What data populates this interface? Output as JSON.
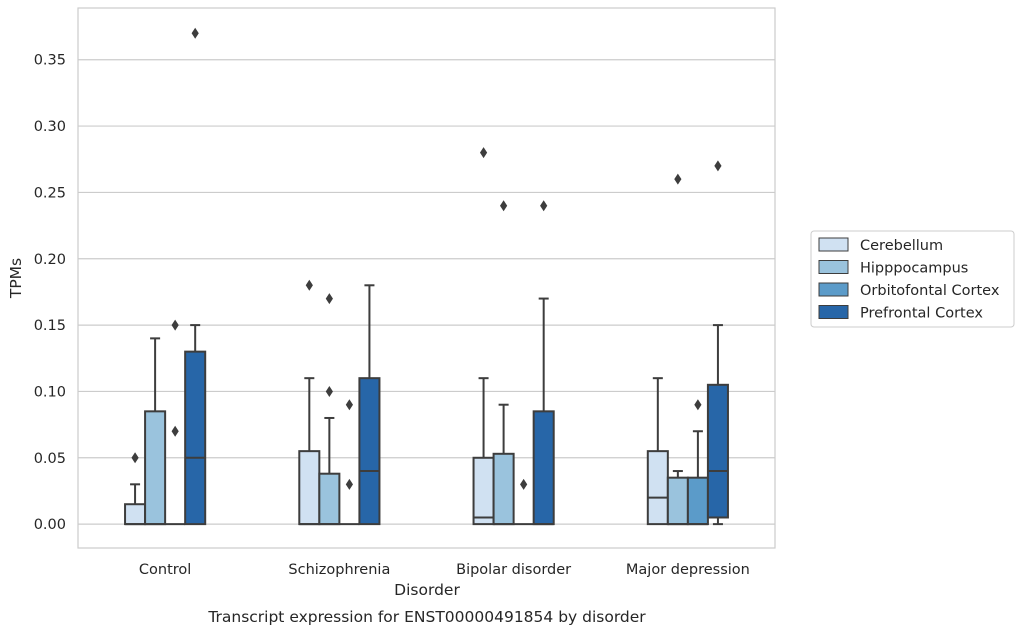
{
  "chart_data": {
    "type": "box",
    "title": "",
    "caption": "Transcript expression for ENST00000491854 by disorder",
    "xlabel": "Disorder",
    "ylabel": "TPMs",
    "ylim": [
      -0.018,
      0.389
    ],
    "yticks": [
      "0.00",
      "0.05",
      "0.10",
      "0.15",
      "0.20",
      "0.25",
      "0.30",
      "0.35"
    ],
    "ytick_values": [
      0.0,
      0.05,
      0.1,
      0.15,
      0.2,
      0.25,
      0.3,
      0.35
    ],
    "categories": [
      "Control",
      "Schizophrenia",
      "Bipolar disorder",
      "Major depression"
    ],
    "grid": "horizontal",
    "legend_position": "right",
    "series": [
      {
        "name": "Cerebellum",
        "color": "#d0e1f2",
        "boxes": [
          {
            "q1": 0.0,
            "median": 0.0,
            "q3": 0.015,
            "whisker_low": 0.0,
            "whisker_high": 0.03,
            "outliers": [
              0.05
            ]
          },
          {
            "q1": 0.0,
            "median": 0.0,
            "q3": 0.055,
            "whisker_low": 0.0,
            "whisker_high": 0.11,
            "outliers": [
              0.18
            ]
          },
          {
            "q1": 0.0,
            "median": 0.005,
            "q3": 0.05,
            "whisker_low": 0.0,
            "whisker_high": 0.11,
            "outliers": [
              0.28
            ]
          },
          {
            "q1": 0.0,
            "median": 0.02,
            "q3": 0.055,
            "whisker_low": 0.0,
            "whisker_high": 0.11,
            "outliers": []
          }
        ]
      },
      {
        "name": "Hipppocampus",
        "color": "#9ac3dd",
        "boxes": [
          {
            "q1": 0.0,
            "median": 0.0,
            "q3": 0.085,
            "whisker_low": 0.0,
            "whisker_high": 0.14,
            "outliers": []
          },
          {
            "q1": 0.0,
            "median": 0.0,
            "q3": 0.038,
            "whisker_low": 0.0,
            "whisker_high": 0.08,
            "outliers": [
              0.1,
              0.17
            ]
          },
          {
            "q1": 0.0,
            "median": 0.0,
            "q3": 0.053,
            "whisker_low": 0.0,
            "whisker_high": 0.09,
            "outliers": [
              0.24
            ]
          },
          {
            "q1": 0.0,
            "median": 0.0,
            "q3": 0.035,
            "whisker_low": 0.0,
            "whisker_high": 0.04,
            "outliers": [
              0.26
            ]
          }
        ]
      },
      {
        "name": "Orbitofontal Cortex",
        "color": "#5b9bc9",
        "boxes": [
          {
            "q1": 0.0,
            "median": 0.0,
            "q3": 0.0,
            "whisker_low": 0.0,
            "whisker_high": 0.0,
            "outliers": [
              0.07,
              0.15
            ]
          },
          {
            "q1": 0.0,
            "median": 0.0,
            "q3": 0.0,
            "whisker_low": 0.0,
            "whisker_high": 0.0,
            "outliers": [
              0.03,
              0.09
            ]
          },
          {
            "q1": 0.0,
            "median": 0.0,
            "q3": 0.0,
            "whisker_low": 0.0,
            "whisker_high": 0.0,
            "outliers": [
              0.03
            ]
          },
          {
            "q1": 0.0,
            "median": 0.0,
            "q3": 0.035,
            "whisker_low": 0.0,
            "whisker_high": 0.07,
            "outliers": [
              0.09
            ]
          }
        ]
      },
      {
        "name": "Prefrontal Cortex",
        "color": "#2766a8",
        "boxes": [
          {
            "q1": 0.0,
            "median": 0.05,
            "q3": 0.13,
            "whisker_low": 0.0,
            "whisker_high": 0.15,
            "outliers": [
              0.37
            ]
          },
          {
            "q1": 0.0,
            "median": 0.04,
            "q3": 0.11,
            "whisker_low": 0.0,
            "whisker_high": 0.18,
            "outliers": []
          },
          {
            "q1": 0.0,
            "median": 0.0,
            "q3": 0.085,
            "whisker_low": 0.0,
            "whisker_high": 0.17,
            "outliers": [
              0.24
            ]
          },
          {
            "q1": 0.005,
            "median": 0.04,
            "q3": 0.105,
            "whisker_low": 0.0,
            "whisker_high": 0.15,
            "outliers": [
              0.27
            ]
          }
        ]
      }
    ]
  }
}
